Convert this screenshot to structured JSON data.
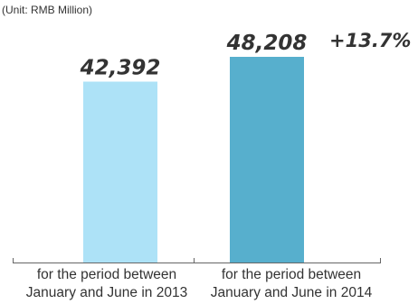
{
  "chart_data": {
    "type": "bar",
    "unit_note": "(Unit: RMB Million)",
    "categories": [
      [
        "for the period between",
        "January and June in 2013"
      ],
      [
        "for the period between",
        "January and June in 2014"
      ]
    ],
    "values": [
      42392,
      48208
    ],
    "value_labels": [
      "42,392",
      "48,208"
    ],
    "change_label": "+13.7%",
    "ylim": [
      0,
      48208
    ],
    "grid": false,
    "legend": "none"
  },
  "colors": {
    "bar_2013": "#ade2f7",
    "bar_2014": "#57afcd",
    "axis": "#666666",
    "text": "#333333"
  }
}
